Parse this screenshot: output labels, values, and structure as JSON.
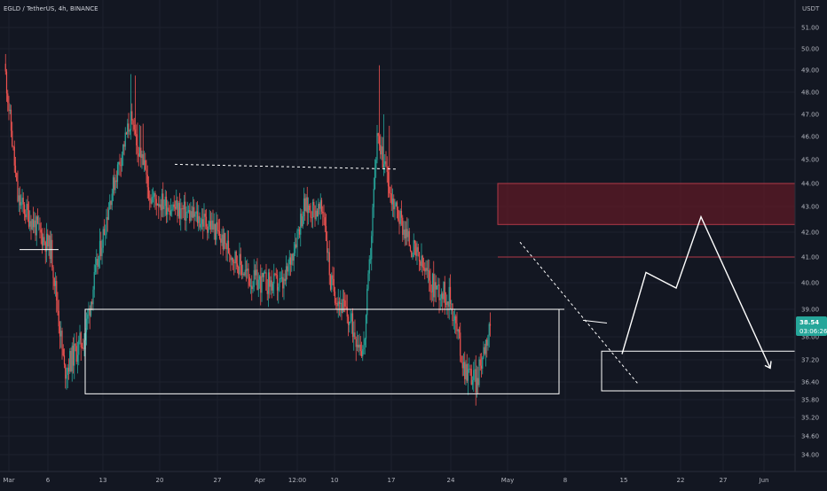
{
  "header": {
    "title": "EGLD / TetherUS, 4h, BINANCE"
  },
  "price_axis": {
    "unit": "USDT",
    "ticks": [
      "51.00",
      "50.00",
      "49.00",
      "48.00",
      "47.00",
      "46.00",
      "45.00",
      "44.00",
      "43.00",
      "42.00",
      "41.00",
      "40.00",
      "39.00",
      "38.00",
      "37.20",
      "36.40",
      "35.80",
      "35.20",
      "34.60",
      "34.00"
    ],
    "last_price": "38.54",
    "countdown": "03:06:26"
  },
  "time_axis": {
    "ticks": [
      "Mar",
      "6",
      "13",
      "20",
      "27",
      "Apr",
      "12:00",
      "10",
      "17",
      "24",
      "May",
      "8",
      "15",
      "22",
      "27",
      "Jun"
    ]
  },
  "colors": {
    "background": "#131722",
    "bull": "#26a69a",
    "bear": "#ef5350",
    "zone_fill": "#5d1a26",
    "zone_line": "#b23a48",
    "drawing": "#ffffff",
    "price_label": "#26a69a"
  },
  "chart_data": {
    "type": "candlestick",
    "symbol": "EGLD / TetherUS",
    "interval": "4h",
    "exchange": "BINANCE",
    "ylabel": "USDT",
    "ylim": [
      33.5,
      52.2
    ],
    "key_points": [
      {
        "date": "Mar 1",
        "price": 49.3
      },
      {
        "date": "Mar 3",
        "price": 43.3
      },
      {
        "date": "Mar 8",
        "price": 41.3
      },
      {
        "date": "Mar 10",
        "price": 36.8
      },
      {
        "date": "Mar 13",
        "price": 38.0
      },
      {
        "date": "Mar 17",
        "price": 43.5
      },
      {
        "date": "Mar 20",
        "price": 46.8
      },
      {
        "date": "Mar 23",
        "price": 43.4
      },
      {
        "date": "Apr 1",
        "price": 42.3
      },
      {
        "date": "Apr 7",
        "price": 40.1
      },
      {
        "date": "Apr 12",
        "price": 39.9
      },
      {
        "date": "Apr 15",
        "price": 43.0
      },
      {
        "date": "Apr 18",
        "price": 42.8
      },
      {
        "date": "Apr 19",
        "price": 40.0
      },
      {
        "date": "Apr 24",
        "price": 37.5
      },
      {
        "date": "Apr 25",
        "price": 41.2
      },
      {
        "date": "Apr 26",
        "price": 46.1
      },
      {
        "date": "Apr 28",
        "price": 43.5
      },
      {
        "date": "May 1",
        "price": 41.5
      },
      {
        "date": "May 4",
        "price": 40.0
      },
      {
        "date": "May 7",
        "price": 39.4
      },
      {
        "date": "May 9",
        "price": 37.0
      },
      {
        "date": "May 11",
        "price": 36.4
      },
      {
        "date": "May 12",
        "price": 37.6
      },
      {
        "date": "May 13",
        "price": 38.54
      }
    ],
    "zones": [
      {
        "kind": "supply",
        "top": 44.0,
        "bottom": 42.3
      },
      {
        "kind": "resistance-line",
        "price": 41.0
      },
      {
        "kind": "range-box",
        "top": 39.0,
        "bottom": 36.0
      },
      {
        "kind": "range-box",
        "top": 37.5,
        "bottom": 36.1
      }
    ],
    "projection": [
      {
        "date": "May 13",
        "price": 37.4
      },
      {
        "date": "May 18",
        "price": 40.4
      },
      {
        "date": "May 21",
        "price": 39.8
      },
      {
        "date": "May 24",
        "price": 42.6
      },
      {
        "date": "Jun 1",
        "price": 36.9
      }
    ]
  }
}
